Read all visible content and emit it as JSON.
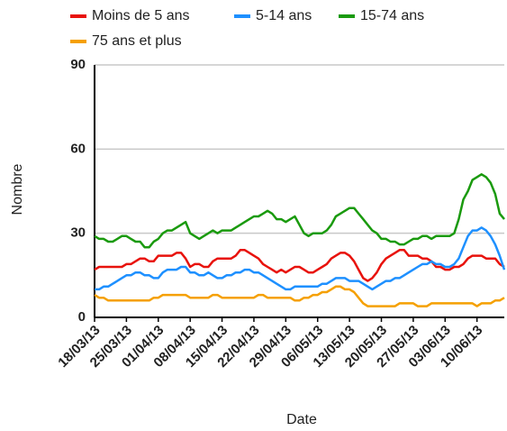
{
  "chart_data": {
    "type": "line",
    "x_label": "Date",
    "y_label": "Nombre",
    "categories": [
      "18/03/13",
      null,
      null,
      null,
      null,
      null,
      null,
      "25/03/13",
      null,
      null,
      null,
      null,
      null,
      null,
      "01/04/13",
      null,
      null,
      null,
      null,
      null,
      null,
      "08/04/13",
      null,
      null,
      null,
      null,
      null,
      null,
      "15/04/13",
      null,
      null,
      null,
      null,
      null,
      null,
      "22/04/13",
      null,
      null,
      null,
      null,
      null,
      null,
      "29/04/13",
      null,
      null,
      null,
      null,
      null,
      null,
      "06/05/13",
      null,
      null,
      null,
      null,
      null,
      null,
      "13/05/13",
      null,
      null,
      null,
      null,
      null,
      null,
      "20/05/13",
      null,
      null,
      null,
      null,
      null,
      null,
      "27/05/13",
      null,
      null,
      null,
      null,
      null,
      null,
      "03/06/13",
      null,
      null,
      null,
      null,
      null,
      null,
      "10/06/13",
      null,
      null,
      null,
      null,
      null,
      null
    ],
    "series": [
      {
        "name": "Moins de 5 ans",
        "color": "#e8120c",
        "values": [
          17,
          18,
          18,
          18,
          18,
          18,
          18,
          19,
          19,
          20,
          21,
          21,
          20,
          20,
          22,
          22,
          22,
          22,
          23,
          23,
          21,
          18,
          19,
          19,
          18,
          18,
          20,
          21,
          21,
          21,
          21,
          22,
          24,
          24,
          23,
          22,
          21,
          19,
          18,
          17,
          16,
          17,
          16,
          17,
          18,
          18,
          17,
          16,
          16,
          17,
          18,
          19,
          21,
          22,
          23,
          23,
          22,
          20,
          17,
          14,
          13,
          14,
          16,
          19,
          21,
          22,
          23,
          24,
          24,
          22,
          22,
          22,
          21,
          21,
          20,
          18,
          18,
          17,
          17,
          18,
          18,
          19,
          21,
          22,
          22,
          22,
          21,
          21,
          21,
          19,
          18
        ]
      },
      {
        "name": "5-14 ans",
        "color": "#1e90ff",
        "values": [
          10,
          10,
          11,
          11,
          12,
          13,
          14,
          15,
          15,
          16,
          16,
          15,
          15,
          14,
          14,
          16,
          17,
          17,
          17,
          18,
          18,
          16,
          16,
          15,
          15,
          16,
          15,
          14,
          14,
          15,
          15,
          16,
          16,
          17,
          17,
          16,
          16,
          15,
          14,
          13,
          12,
          11,
          10,
          10,
          11,
          11,
          11,
          11,
          11,
          11,
          12,
          12,
          13,
          14,
          14,
          14,
          13,
          13,
          13,
          12,
          11,
          10,
          11,
          12,
          13,
          13,
          14,
          14,
          15,
          16,
          17,
          18,
          19,
          19,
          20,
          19,
          19,
          18,
          18,
          19,
          21,
          25,
          29,
          31,
          31,
          32,
          31,
          29,
          26,
          22,
          17
        ]
      },
      {
        "name": "15-74 ans",
        "color": "#1a9a0e",
        "values": [
          29,
          28,
          28,
          27,
          27,
          28,
          29,
          29,
          28,
          27,
          27,
          25,
          25,
          27,
          28,
          30,
          31,
          31,
          32,
          33,
          34,
          30,
          29,
          28,
          29,
          30,
          31,
          30,
          31,
          31,
          31,
          32,
          33,
          34,
          35,
          36,
          36,
          37,
          38,
          37,
          35,
          35,
          34,
          35,
          36,
          33,
          30,
          29,
          30,
          30,
          30,
          31,
          33,
          36,
          37,
          38,
          39,
          39,
          37,
          35,
          33,
          31,
          30,
          28,
          28,
          27,
          27,
          26,
          26,
          27,
          28,
          28,
          29,
          29,
          28,
          29,
          29,
          29,
          29,
          30,
          35,
          42,
          45,
          49,
          50,
          51,
          50,
          48,
          44,
          37,
          35
        ]
      },
      {
        "name": "75 ans et plus",
        "color": "#f5a000",
        "values": [
          8,
          7,
          7,
          6,
          6,
          6,
          6,
          6,
          6,
          6,
          6,
          6,
          6,
          7,
          7,
          8,
          8,
          8,
          8,
          8,
          8,
          7,
          7,
          7,
          7,
          7,
          8,
          8,
          7,
          7,
          7,
          7,
          7,
          7,
          7,
          7,
          8,
          8,
          7,
          7,
          7,
          7,
          7,
          7,
          6,
          6,
          7,
          7,
          8,
          8,
          9,
          9,
          10,
          11,
          11,
          10,
          10,
          9,
          7,
          5,
          4,
          4,
          4,
          4,
          4,
          4,
          4,
          5,
          5,
          5,
          5,
          4,
          4,
          4,
          5,
          5,
          5,
          5,
          5,
          5,
          5,
          5,
          5,
          5,
          4,
          5,
          5,
          5,
          6,
          6,
          7
        ]
      }
    ],
    "ylim": [
      0,
      90
    ],
    "yticks": [
      0,
      30,
      60,
      90
    ],
    "grid": true,
    "legend": "top"
  }
}
